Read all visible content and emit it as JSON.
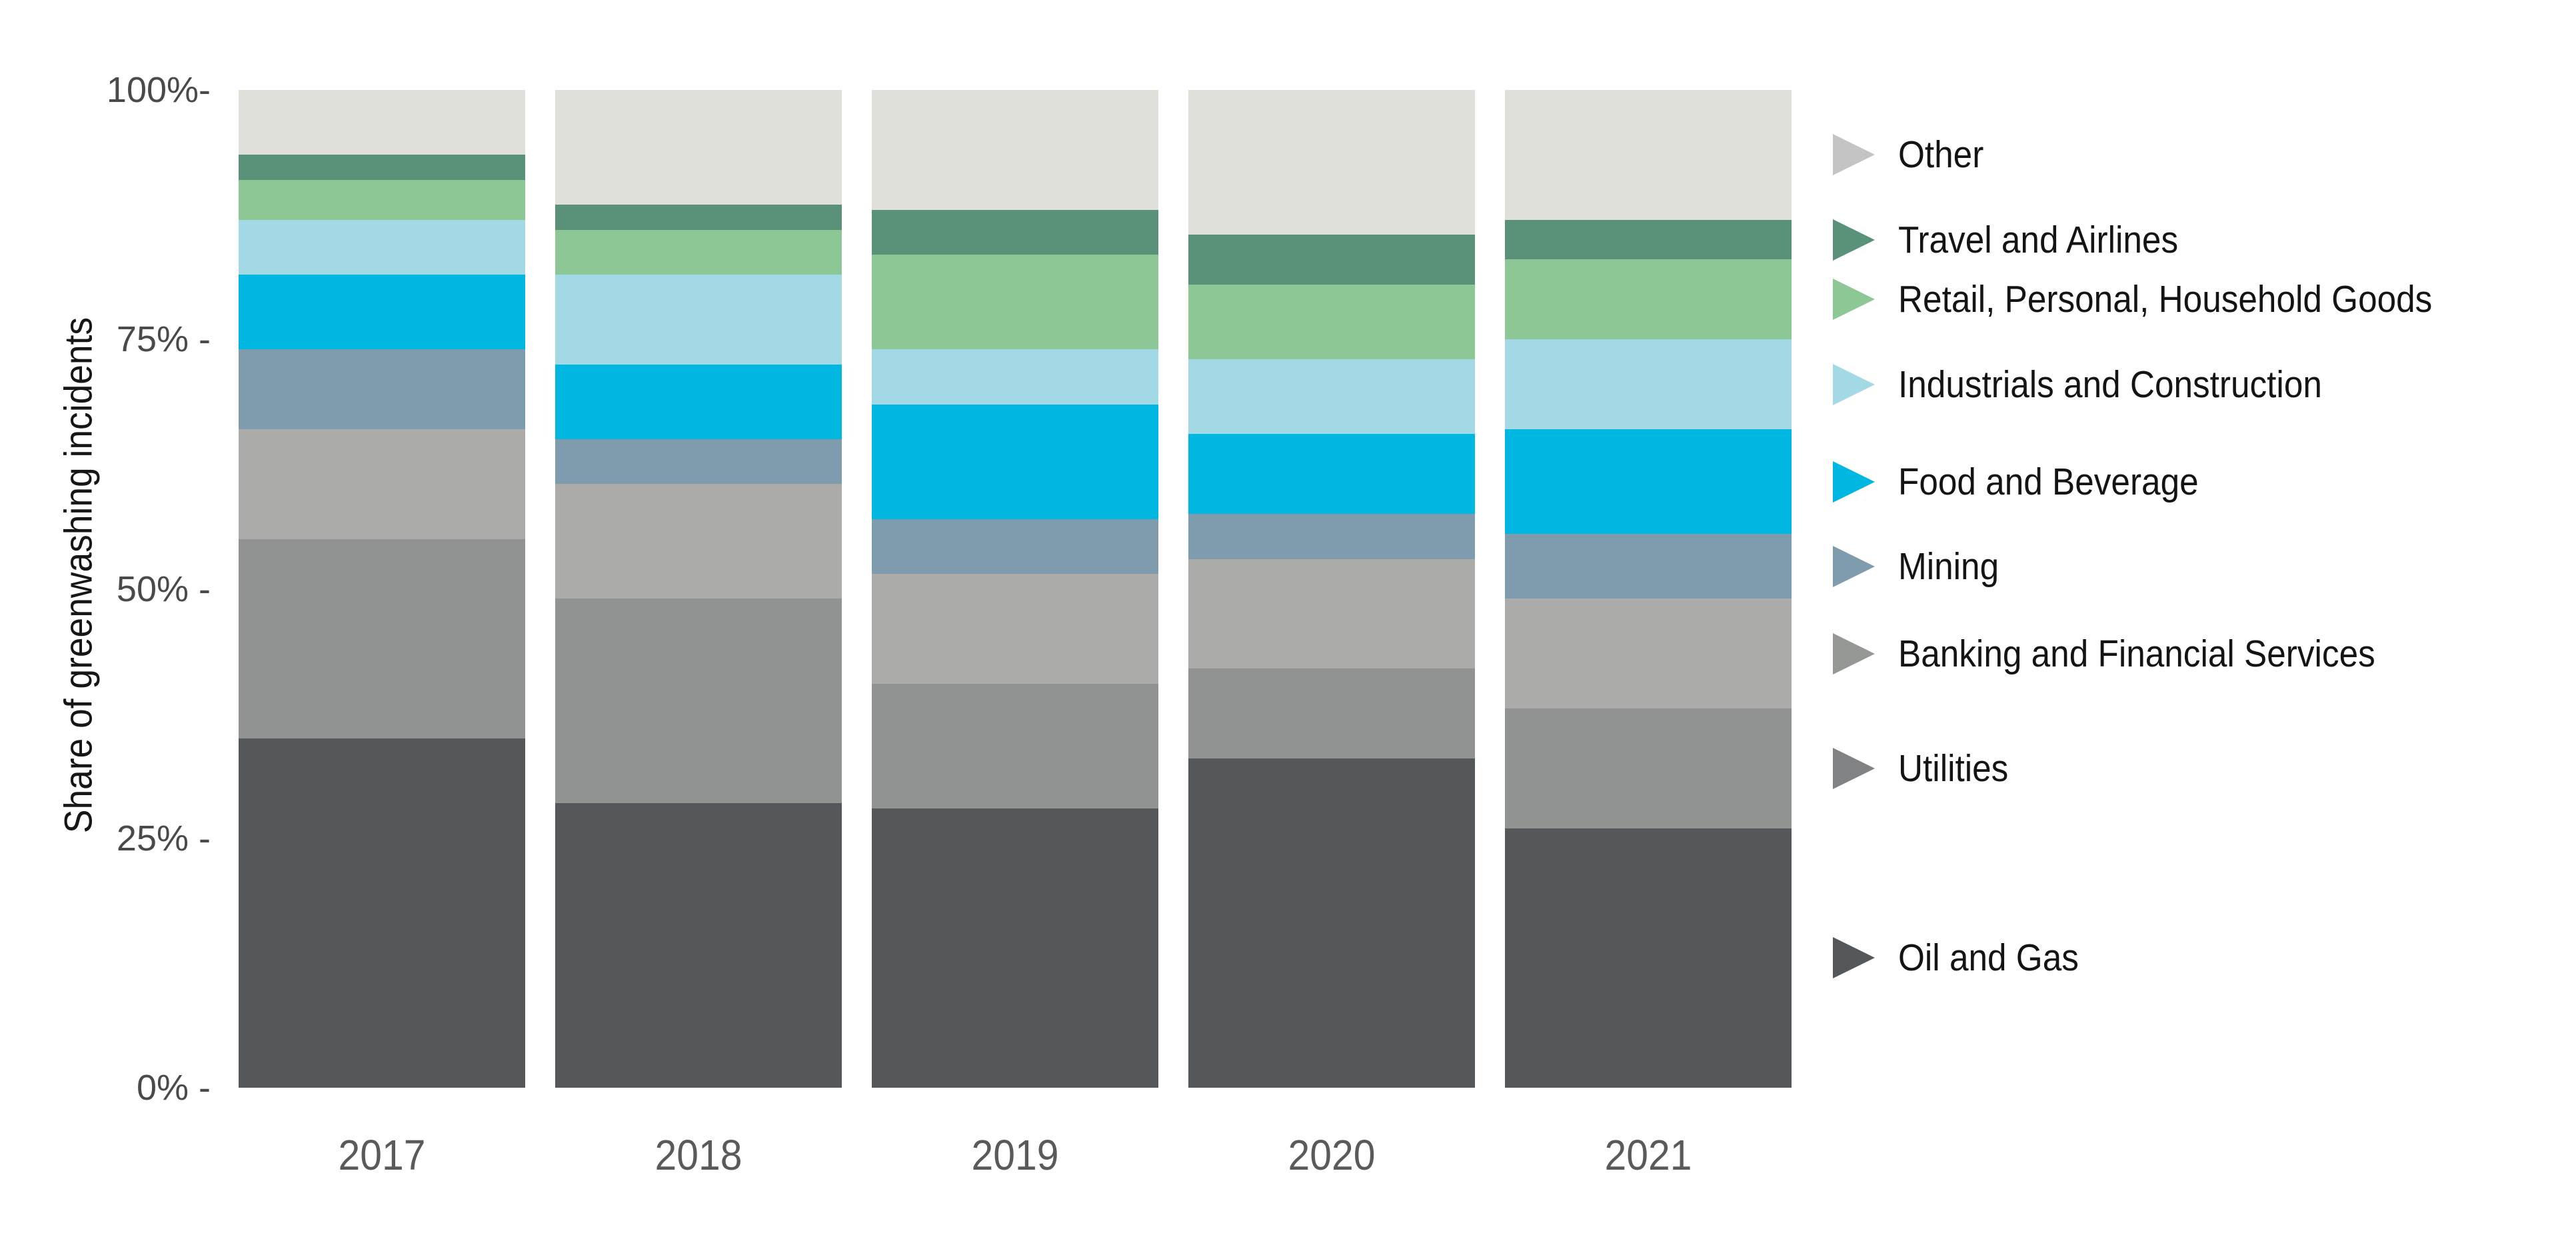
{
  "chart_data": {
    "type": "bar",
    "subtype": "stacked-100-percent",
    "title": "",
    "ylabel": "Share of greenwashing incidents",
    "xlabel": "",
    "categories": [
      "2017",
      "2018",
      "2019",
      "2020",
      "2021"
    ],
    "ylim": [
      0,
      100
    ],
    "grid": false,
    "legend_position": "right-aligned-to-last-bar-segments",
    "y_ticks": [
      {
        "value": 100,
        "label": "100%-"
      },
      {
        "value": 75,
        "label": "75% -"
      },
      {
        "value": 50,
        "label": "50% -"
      },
      {
        "value": 25,
        "label": "25% -"
      },
      {
        "value": 0,
        "label": "0% -"
      }
    ],
    "series_note": "listed in top-to-bottom stacking order; values are percent of each year's total",
    "series": [
      {
        "name": "Other",
        "color": "#E0E0DA",
        "marker_color": "#C3C4C3",
        "values": [
          6.5,
          11.5,
          12,
          14.5,
          13
        ]
      },
      {
        "name": "Travel and Airlines",
        "color": "#5A9279",
        "marker_color": "#5A9279",
        "values": [
          2.5,
          2.5,
          4.5,
          5,
          4
        ]
      },
      {
        "name": "Retail, Personal, Household Goods",
        "color": "#8EC796",
        "marker_color": "#8EC796",
        "values": [
          4,
          4.5,
          9.5,
          7.5,
          8
        ]
      },
      {
        "name": "Industrials and Construction",
        "color": "#A3D9E4",
        "marker_color": "#A3D9E4",
        "values": [
          5.5,
          9,
          5.5,
          7.5,
          9
        ]
      },
      {
        "name": "Food and Beverage",
        "color": "#00B7E2",
        "marker_color": "#00B7E2",
        "values": [
          7.5,
          7.5,
          11.5,
          8,
          10.5
        ]
      },
      {
        "name": "Mining",
        "color": "#7E9CAE",
        "marker_color": "#7E9CAE",
        "values": [
          8,
          4.5,
          5.5,
          4.5,
          6.5
        ]
      },
      {
        "name": "Banking and Financial Services",
        "color": "#ABABAA",
        "marker_color": "#959795",
        "values": [
          11,
          11.5,
          11,
          11,
          11
        ]
      },
      {
        "name": "Utilities",
        "color": "#909392",
        "marker_color": "#808283",
        "values": [
          20,
          20.5,
          12.5,
          9,
          12
        ]
      },
      {
        "name": "Oil and Gas",
        "color": "#54585B",
        "marker_color": "#54585B",
        "values": [
          35,
          28.5,
          28,
          33,
          26
        ]
      }
    ],
    "colors": {
      "background": "#FFFFFF",
      "tick_label_text": "#4A4A4C",
      "year_label_text": "#595A5C",
      "axis_title_text": "#161616",
      "legend_text": "#141414"
    }
  }
}
